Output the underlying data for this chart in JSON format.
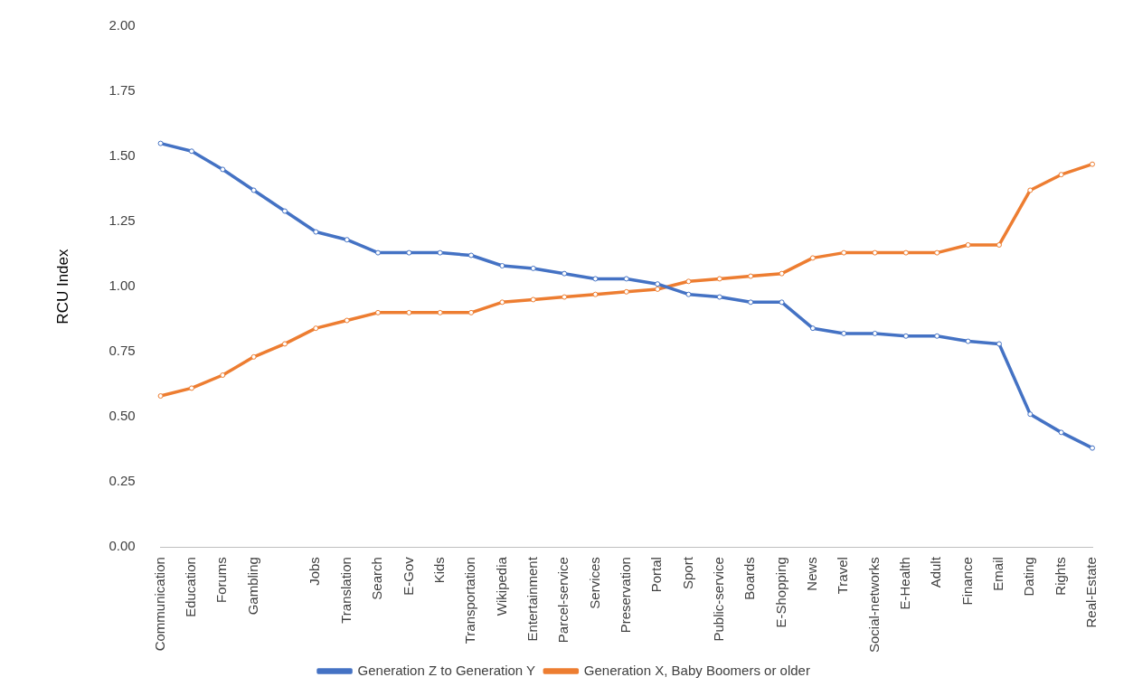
{
  "chart_data": {
    "type": "line",
    "ylabel": "RCU Index",
    "categories": [
      "Communication",
      "Education",
      "Forums",
      "Gambling",
      null,
      "Jobs",
      "Translation",
      "Search",
      "E-Gov",
      "Kids",
      "Transportation",
      "Wikipedia",
      "Entertainment",
      "Parcel-service",
      "Services",
      "Preservation",
      "Portal",
      "Sport",
      "Public-service",
      "Boards",
      "E-Shopping",
      "News",
      "Travel",
      "Social-networks",
      "E-Health",
      "Adult",
      "Finance",
      "Email",
      "Dating",
      "Rights",
      "Real-Estate"
    ],
    "series": [
      {
        "name": "Generation Z to Generation Y",
        "color": "#4472c4",
        "values": [
          1.55,
          1.52,
          1.45,
          1.37,
          1.29,
          1.21,
          1.18,
          1.13,
          1.13,
          1.13,
          1.12,
          1.08,
          1.07,
          1.05,
          1.03,
          1.03,
          1.01,
          0.97,
          0.96,
          0.94,
          0.94,
          0.84,
          0.82,
          0.82,
          0.81,
          0.81,
          0.79,
          0.78,
          0.51,
          0.44,
          0.38
        ]
      },
      {
        "name": "Generation X, Baby Boomers or older",
        "color": "#ed7d31",
        "values": [
          0.58,
          0.61,
          0.66,
          0.73,
          0.78,
          0.84,
          0.87,
          0.9,
          0.9,
          0.9,
          0.9,
          0.94,
          0.95,
          0.96,
          0.97,
          0.98,
          0.99,
          1.02,
          1.03,
          1.04,
          1.05,
          1.11,
          1.13,
          1.13,
          1.13,
          1.13,
          1.16,
          1.16,
          1.37,
          1.43,
          1.47
        ]
      }
    ],
    "ylim": [
      0,
      2
    ],
    "yticks": [
      {
        "value": 0,
        "label": "0.00"
      },
      {
        "value": 0.25,
        "label": "0.25"
      },
      {
        "value": 0.5,
        "label": "0.50"
      },
      {
        "value": 0.75,
        "label": "0.75"
      },
      {
        "value": 1,
        "label": "1.00"
      },
      {
        "value": 1.25,
        "label": "1.25"
      },
      {
        "value": 1.5,
        "label": "1.50"
      },
      {
        "value": 1.75,
        "label": "1.75"
      },
      {
        "value": 2,
        "label": "2.00"
      }
    ],
    "grid": false,
    "legend": "bottom",
    "marker": "circle",
    "line_style": "solid"
  }
}
